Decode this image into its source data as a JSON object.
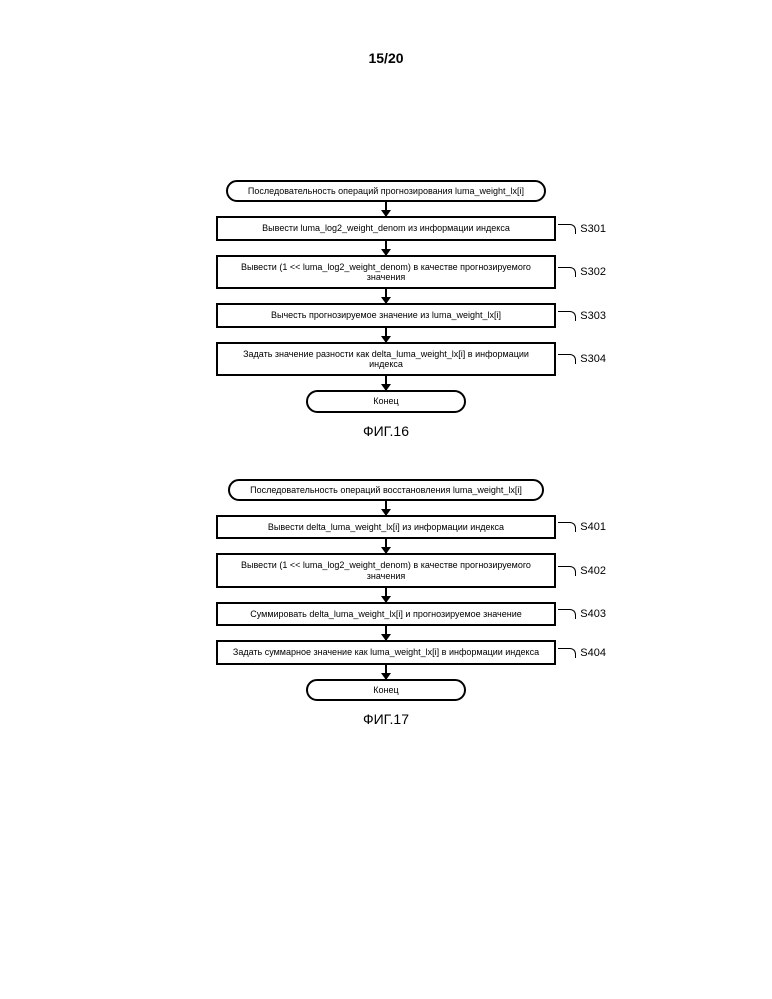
{
  "page_number": "15/20",
  "fig16": {
    "caption": "ФИГ.16",
    "start": "Последовательность операций прогнозирования luma_weight_lx[i]",
    "steps": [
      {
        "label": "S301",
        "text": "Вывести luma_log2_weight_denom из информации индекса"
      },
      {
        "label": "S302",
        "text": "Вывести (1 << luma_log2_weight_denom) в качестве прогнозируемого значения"
      },
      {
        "label": "S303",
        "text": "Вычесть прогнозируемое значение из luma_weight_lx[i]"
      },
      {
        "label": "S304",
        "text": "Задать значение разности как delta_luma_weight_lx[i] в информации индекса"
      }
    ],
    "end": "Конец"
  },
  "fig17": {
    "caption": "ФИГ.17",
    "start": "Последовательность операций восстановления luma_weight_lx[i]",
    "steps": [
      {
        "label": "S401",
        "text": "Вывести delta_luma_weight_lx[i] из информации индекса"
      },
      {
        "label": "S402",
        "text": "Вывести (1 << luma_log2_weight_denom) в качестве прогнозируемого значения"
      },
      {
        "label": "S403",
        "text": "Суммировать delta_luma_weight_lx[i] и прогнозируемое значение"
      },
      {
        "label": "S404",
        "text": "Задать суммарное значение как luma_weight_lx[i] в информации индекса"
      }
    ],
    "end": "Конец"
  }
}
